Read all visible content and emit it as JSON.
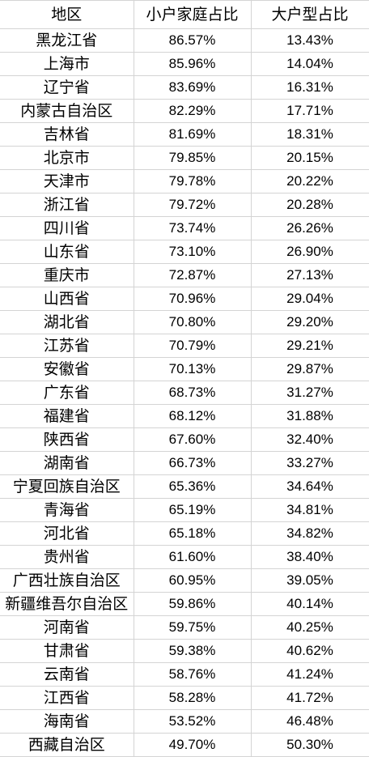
{
  "table": {
    "headers": [
      "地区",
      "小户家庭占比",
      "大户型占比"
    ],
    "rows": [
      [
        "黑龙江省",
        "86.57%",
        "13.43%"
      ],
      [
        "上海市",
        "85.96%",
        "14.04%"
      ],
      [
        "辽宁省",
        "83.69%",
        "16.31%"
      ],
      [
        "内蒙古自治区",
        "82.29%",
        "17.71%"
      ],
      [
        "吉林省",
        "81.69%",
        "18.31%"
      ],
      [
        "北京市",
        "79.85%",
        "20.15%"
      ],
      [
        "天津市",
        "79.78%",
        "20.22%"
      ],
      [
        "浙江省",
        "79.72%",
        "20.28%"
      ],
      [
        "四川省",
        "73.74%",
        "26.26%"
      ],
      [
        "山东省",
        "73.10%",
        "26.90%"
      ],
      [
        "重庆市",
        "72.87%",
        "27.13%"
      ],
      [
        "山西省",
        "70.96%",
        "29.04%"
      ],
      [
        "湖北省",
        "70.80%",
        "29.20%"
      ],
      [
        "江苏省",
        "70.79%",
        "29.21%"
      ],
      [
        "安徽省",
        "70.13%",
        "29.87%"
      ],
      [
        "广东省",
        "68.73%",
        "31.27%"
      ],
      [
        "福建省",
        "68.12%",
        "31.88%"
      ],
      [
        "陕西省",
        "67.60%",
        "32.40%"
      ],
      [
        "湖南省",
        "66.73%",
        "33.27%"
      ],
      [
        "宁夏回族自治区",
        "65.36%",
        "34.64%"
      ],
      [
        "青海省",
        "65.19%",
        "34.81%"
      ],
      [
        "河北省",
        "65.18%",
        "34.82%"
      ],
      [
        "贵州省",
        "61.60%",
        "38.40%"
      ],
      [
        "广西壮族自治区",
        "60.95%",
        "39.05%"
      ],
      [
        "新疆维吾尔自治区",
        "59.86%",
        "40.14%"
      ],
      [
        "河南省",
        "59.75%",
        "40.25%"
      ],
      [
        "甘肃省",
        "59.38%",
        "40.62%"
      ],
      [
        "云南省",
        "58.76%",
        "41.24%"
      ],
      [
        "江西省",
        "58.28%",
        "41.72%"
      ],
      [
        "海南省",
        "53.52%",
        "46.48%"
      ],
      [
        "西藏自治区",
        "49.70%",
        "50.30%"
      ]
    ]
  }
}
